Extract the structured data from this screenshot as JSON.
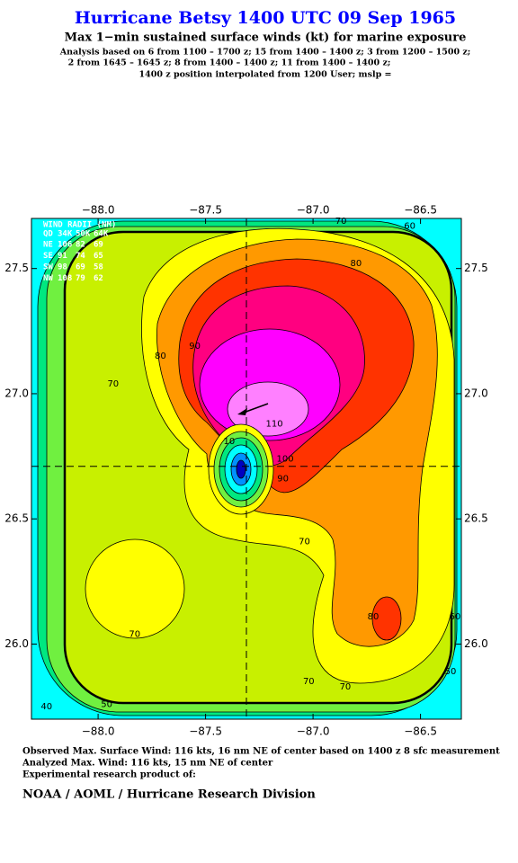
{
  "chart_data": {
    "type": "contour",
    "title": "Hurricane Betsy 1400 UTC 09 Sep 1965",
    "subtitle": "Max 1−min sustained surface winds (kt) for marine exposure",
    "notes": [
      "Analysis based on  6 from 1100 – 1700 z;  15 from 1400 – 1400 z;  3 from 1200 – 1500 z;",
      "2 from 1645 – 1645 z;  8 from 1400 – 1400 z;  11 from 1400 – 1400 z;",
      "1400 z position interpolated from 1200 User; mslp ="
    ],
    "xlim": [
      -88.31,
      -86.31
    ],
    "ylim": [
      25.7,
      27.7
    ],
    "xticks": [
      {
        "value": -88.0,
        "label": "−88.0"
      },
      {
        "value": -87.5,
        "label": "−87.5"
      },
      {
        "value": -87.0,
        "label": "−87.0"
      },
      {
        "value": -86.5,
        "label": "−86.5"
      }
    ],
    "yticks": [
      {
        "value": 26.0,
        "label": "26.0"
      },
      {
        "value": 26.5,
        "label": "26.5"
      },
      {
        "value": 27.0,
        "label": "27.0"
      },
      {
        "value": 27.5,
        "label": "27.5"
      }
    ],
    "center": {
      "x": -87.31,
      "y": 26.71
    },
    "contour_labels": [
      {
        "value": 70,
        "x": -86.87,
        "y": 27.69
      },
      {
        "value": 60,
        "x": -86.55,
        "y": 27.67
      },
      {
        "value": 80,
        "x": -86.8,
        "y": 27.52
      },
      {
        "value": 90,
        "x": -87.55,
        "y": 27.19
      },
      {
        "value": 80,
        "x": -87.71,
        "y": 27.15
      },
      {
        "value": 70,
        "x": -87.93,
        "y": 27.04
      },
      {
        "value": 110,
        "x": -87.18,
        "y": 26.88
      },
      {
        "value": 100,
        "x": -87.13,
        "y": 26.74
      },
      {
        "value": 90,
        "x": -87.14,
        "y": 26.66
      },
      {
        "value": 10,
        "x": -87.39,
        "y": 26.81
      },
      {
        "value": 70,
        "x": -87.04,
        "y": 26.41
      },
      {
        "value": 70,
        "x": -87.83,
        "y": 26.04
      },
      {
        "value": 70,
        "x": -87.02,
        "y": 25.85
      },
      {
        "value": 70,
        "x": -86.85,
        "y": 25.83
      },
      {
        "value": 80,
        "x": -86.72,
        "y": 26.11
      },
      {
        "value": 60,
        "x": -86.34,
        "y": 26.11
      },
      {
        "value": 50,
        "x": -86.36,
        "y": 25.89
      },
      {
        "value": 50,
        "x": -87.96,
        "y": 25.76
      },
      {
        "value": 40,
        "x": -88.24,
        "y": 25.75
      }
    ],
    "wind_radii": {
      "title": "WIND RADII (NM)",
      "header": [
        "QD",
        "34K",
        "50K",
        "64K"
      ],
      "rows": [
        [
          "NE",
          "106",
          "82",
          "69"
        ],
        [
          "SE",
          "91",
          "74",
          "65"
        ],
        [
          "SW",
          "98",
          "69",
          "58"
        ],
        [
          "NW",
          "108",
          "79",
          "62"
        ]
      ]
    },
    "footer": [
      "Observed Max. Surface Wind: 116 kts, 16 nm NE of center based on 1400 z 8 sfc measurement",
      "Analyzed Max. Wind: 116 kts, 15 nm NE of center",
      "Experimental research product of:"
    ],
    "credit": "NOAA / AOML / Hurricane Research Division"
  }
}
